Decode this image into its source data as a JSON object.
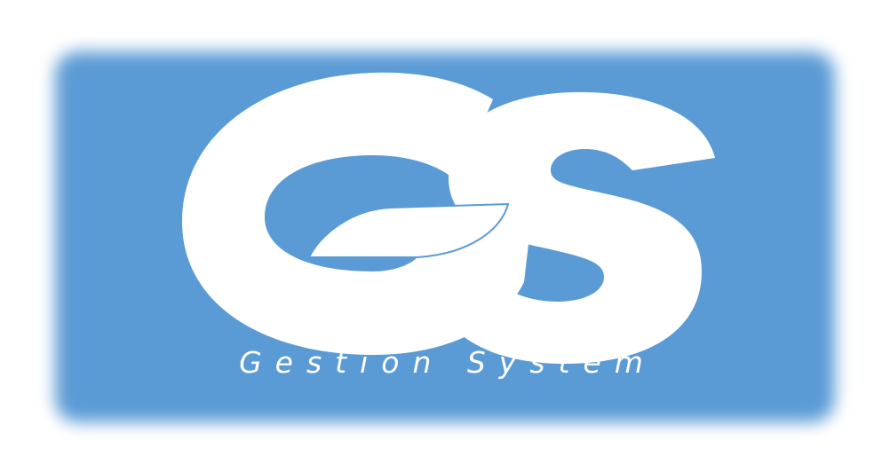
{
  "logo": {
    "monogram": "GS",
    "tagline": "Gestion System"
  },
  "colors": {
    "background": "#ffffff",
    "panel": "#5b9bd5",
    "foreground": "#ffffff"
  }
}
